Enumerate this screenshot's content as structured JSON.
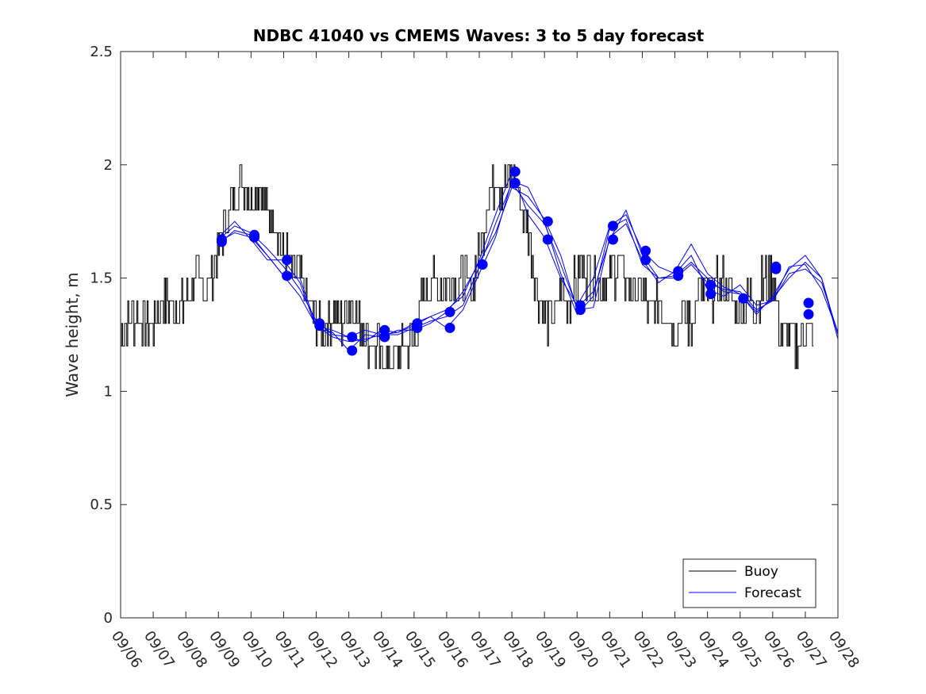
{
  "chart_data": {
    "type": "line",
    "title": "NDBC 41040 vs CMEMS Waves: 3 to 5 day forecast",
    "xlabel": "",
    "ylabel": "Wave height, m",
    "xlim": [
      0,
      22
    ],
    "ylim": [
      0,
      2.5
    ],
    "yticks": [
      0,
      0.5,
      1,
      1.5,
      2,
      2.5
    ],
    "ytick_labels": [
      "0",
      "0.5",
      "1",
      "1.5",
      "2",
      "2.5"
    ],
    "xtick_labels": [
      "09/06",
      "09/07",
      "09/08",
      "09/09",
      "09/10",
      "09/11",
      "09/12",
      "09/13",
      "09/14",
      "09/15",
      "09/16",
      "09/17",
      "09/18",
      "09/19",
      "09/20",
      "09/21",
      "09/22",
      "09/23",
      "09/24",
      "09/25",
      "09/26",
      "09/27",
      "09/28"
    ],
    "grid": false,
    "legend": {
      "position": "bottom-right",
      "entries": [
        "Buoy",
        "Forecast"
      ]
    },
    "colors": {
      "buoy": "#000000",
      "forecast": "#0000ff"
    },
    "buoy": {
      "name": "Buoy",
      "x": [
        0,
        0.25,
        0.5,
        0.75,
        1,
        1.25,
        1.5,
        1.75,
        2,
        2.25,
        2.5,
        2.75,
        3,
        3.25,
        3.5,
        3.75,
        4,
        4.25,
        4.5,
        4.75,
        5,
        5.25,
        5.5,
        5.75,
        6,
        6.25,
        6.5,
        6.75,
        7,
        7.25,
        7.5,
        7.75,
        8,
        8.25,
        8.5,
        8.75,
        9,
        9.25,
        9.5,
        9.75,
        10,
        10.25,
        10.5,
        10.75,
        11,
        11.25,
        11.5,
        11.75,
        12,
        12.25,
        12.5,
        12.75,
        13,
        13.25,
        13.5,
        13.75,
        14,
        14.25,
        14.5,
        14.75,
        15,
        15.25,
        15.5,
        15.75,
        16,
        16.25,
        16.5,
        16.75,
        17,
        17.25,
        17.5,
        17.75,
        18,
        18.25,
        18.5,
        18.75,
        19,
        19.25,
        19.5,
        19.75,
        20,
        20.25,
        20.5,
        20.75,
        21,
        21.25
      ],
      "values": [
        1.25,
        1.3,
        1.35,
        1.3,
        1.3,
        1.4,
        1.4,
        1.35,
        1.4,
        1.5,
        1.45,
        1.5,
        1.6,
        1.75,
        1.9,
        1.95,
        1.85,
        1.9,
        1.8,
        1.75,
        1.6,
        1.55,
        1.5,
        1.4,
        1.3,
        1.3,
        1.35,
        1.3,
        1.4,
        1.35,
        1.25,
        1.2,
        1.15,
        1.1,
        1.15,
        1.2,
        1.25,
        1.4,
        1.5,
        1.45,
        1.5,
        1.45,
        1.5,
        1.45,
        1.6,
        1.85,
        1.95,
        1.9,
        1.95,
        1.85,
        1.7,
        1.45,
        1.35,
        1.3,
        1.45,
        1.4,
        1.5,
        1.55,
        1.5,
        1.45,
        1.5,
        1.55,
        1.5,
        1.45,
        1.45,
        1.35,
        1.4,
        1.35,
        1.3,
        1.35,
        1.3,
        1.45,
        1.4,
        1.45,
        1.5,
        1.4,
        1.35,
        1.4,
        1.4,
        1.5,
        1.5,
        1.25,
        1.25,
        1.2,
        1.3,
        1.25
      ]
    },
    "forecast_lines": [
      {
        "name": "Forecast",
        "x": [
          3,
          3.5,
          4,
          4.5,
          5,
          5.5,
          6,
          6.5,
          7,
          7.5,
          8,
          8.5,
          9,
          9.5,
          10,
          10.5,
          11,
          11.5,
          12,
          12.5,
          13,
          13.5,
          14,
          14.5,
          15,
          15.5,
          16,
          16.5,
          17,
          17.5,
          18,
          18.5,
          19,
          19.5,
          20,
          20.5,
          21,
          21.5,
          22
        ],
        "values": [
          1.67,
          1.73,
          1.7,
          1.63,
          1.55,
          1.45,
          1.31,
          1.25,
          1.24,
          1.22,
          1.27,
          1.26,
          1.3,
          1.33,
          1.36,
          1.42,
          1.58,
          1.78,
          1.97,
          1.78,
          1.68,
          1.5,
          1.38,
          1.5,
          1.73,
          1.78,
          1.62,
          1.55,
          1.52,
          1.6,
          1.45,
          1.42,
          1.47,
          1.38,
          1.4,
          1.55,
          1.56,
          1.45,
          1.26
        ]
      },
      {
        "name": "Forecast",
        "x": [
          3,
          3.5,
          4,
          4.5,
          5,
          5.5,
          6,
          6.5,
          7,
          7.5,
          8,
          8.5,
          9,
          9.5,
          10,
          10.5,
          11,
          11.5,
          12,
          12.5,
          13,
          13.5,
          14,
          14.5,
          15,
          15.5,
          16,
          16.5,
          17,
          17.5,
          18,
          18.5,
          19,
          19.5,
          20,
          20.5,
          21,
          21.5,
          22
        ],
        "values": [
          1.66,
          1.7,
          1.68,
          1.6,
          1.51,
          1.42,
          1.29,
          1.24,
          1.22,
          1.23,
          1.25,
          1.25,
          1.28,
          1.31,
          1.33,
          1.38,
          1.55,
          1.74,
          1.92,
          1.82,
          1.74,
          1.56,
          1.37,
          1.44,
          1.67,
          1.8,
          1.6,
          1.5,
          1.51,
          1.57,
          1.5,
          1.44,
          1.43,
          1.35,
          1.41,
          1.5,
          1.57,
          1.5,
          1.25
        ]
      },
      {
        "name": "Forecast",
        "x": [
          3,
          3.5,
          4,
          4.5,
          5,
          5.5,
          6,
          6.5,
          7,
          7.5,
          8,
          8.5,
          9,
          9.5,
          10,
          10.5,
          11,
          11.5,
          12,
          12.5,
          13,
          13.5,
          14,
          14.5,
          15,
          15.5,
          16,
          16.5,
          17,
          17.5,
          18,
          18.5,
          19,
          19.5,
          20,
          20.5,
          21,
          21.5,
          22
        ],
        "values": [
          1.68,
          1.75,
          1.67,
          1.58,
          1.58,
          1.48,
          1.28,
          1.26,
          1.18,
          1.25,
          1.24,
          1.27,
          1.27,
          1.3,
          1.35,
          1.44,
          1.57,
          1.7,
          1.9,
          1.86,
          1.76,
          1.6,
          1.36,
          1.37,
          1.68,
          1.74,
          1.58,
          1.48,
          1.53,
          1.65,
          1.52,
          1.46,
          1.43,
          1.34,
          1.42,
          1.54,
          1.6,
          1.5,
          1.23
        ]
      },
      {
        "name": "Forecast",
        "x": [
          3,
          3.5,
          4,
          4.5,
          5,
          5.5,
          6,
          6.5,
          7,
          7.5,
          8,
          8.5,
          9,
          9.5,
          10,
          10.5,
          11,
          11.5,
          12,
          12.5,
          13,
          13.5,
          14,
          14.5,
          15,
          15.5,
          16,
          16.5,
          17,
          17.5,
          18,
          18.5,
          19,
          19.5,
          20,
          20.5,
          21,
          21.5,
          22
        ],
        "values": [
          1.65,
          1.71,
          1.69,
          1.6,
          1.51,
          1.5,
          1.29,
          1.27,
          1.24,
          1.27,
          1.25,
          1.26,
          1.29,
          1.33,
          1.28,
          1.36,
          1.52,
          1.68,
          1.93,
          1.9,
          1.75,
          1.52,
          1.34,
          1.42,
          1.72,
          1.76,
          1.56,
          1.5,
          1.5,
          1.56,
          1.48,
          1.45,
          1.44,
          1.36,
          1.4,
          1.52,
          1.54,
          1.48,
          1.26
        ]
      }
    ],
    "forecast_markers": {
      "x": [
        3.1,
        3.1,
        4.1,
        4.1,
        5.1,
        5.1,
        6.1,
        6.1,
        7.1,
        7.1,
        8.1,
        8.1,
        9.1,
        9.1,
        10.1,
        10.1,
        11.1,
        12.1,
        12.1,
        13.1,
        13.1,
        14.1,
        14.1,
        15.1,
        15.1,
        16.1,
        16.1,
        17.1,
        17.1,
        18.1,
        18.1,
        19.1,
        20.1,
        20.1,
        21.1,
        21.1
      ],
      "values": [
        1.66,
        1.67,
        1.68,
        1.69,
        1.51,
        1.58,
        1.29,
        1.3,
        1.18,
        1.24,
        1.24,
        1.27,
        1.28,
        1.3,
        1.28,
        1.35,
        1.56,
        1.92,
        1.97,
        1.67,
        1.75,
        1.36,
        1.38,
        1.67,
        1.73,
        1.58,
        1.62,
        1.51,
        1.53,
        1.43,
        1.47,
        1.41,
        1.54,
        1.55,
        1.34,
        1.39
      ]
    }
  }
}
